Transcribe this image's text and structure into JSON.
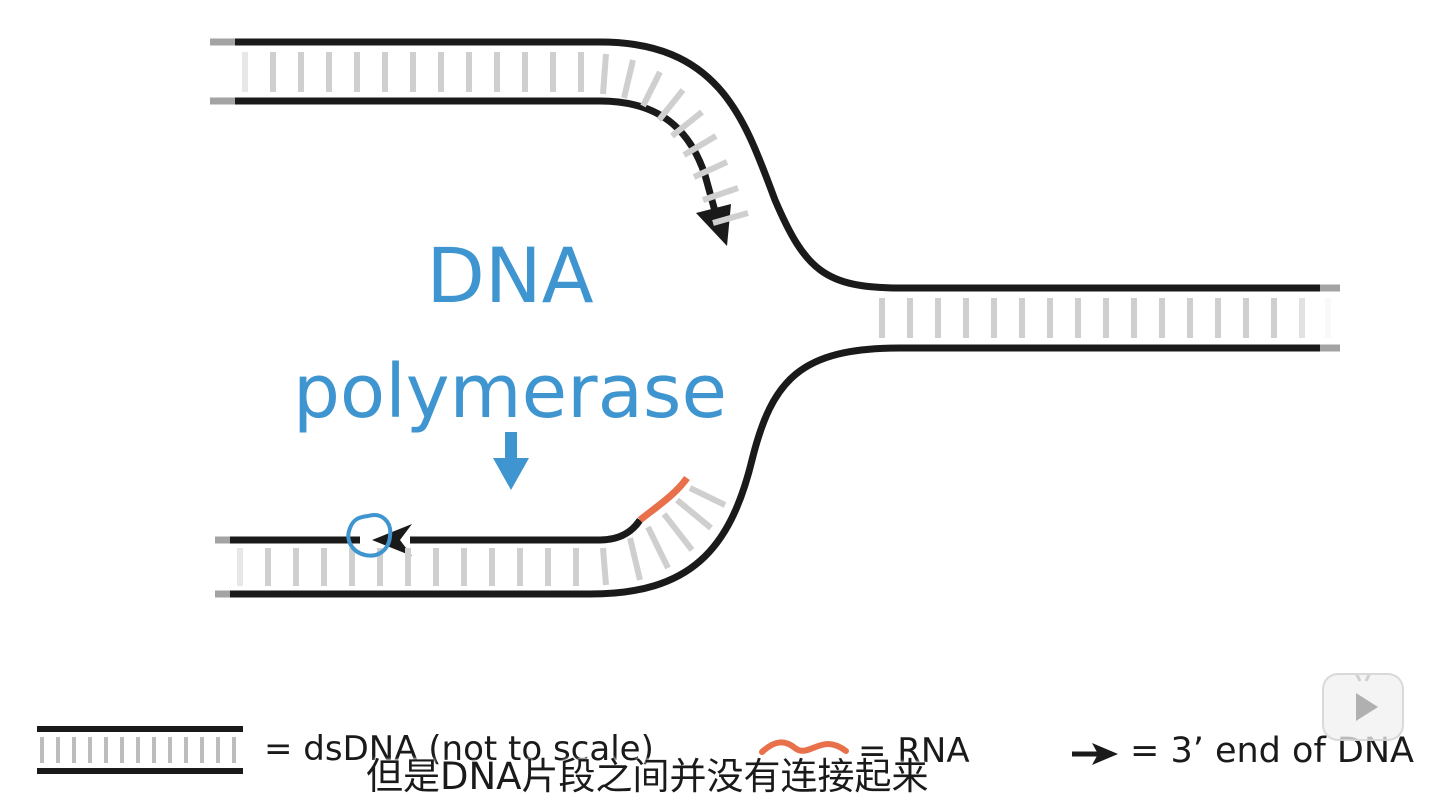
{
  "enzyme": {
    "line1": "DNA",
    "line2": "polymerase"
  },
  "legend": {
    "dsdna": "= dsDNA (not to scale)",
    "rna": "= RNA",
    "three_prime_end": "= 3’ end of DNA"
  },
  "subtitle": "但是DNA片段之间并没有连接起来",
  "colors": {
    "strand": "#1a1a1a",
    "base_pair": "#cfcfcf",
    "rna": "#e8704a",
    "polymerase": "#3f95cf"
  },
  "icons": {
    "play": "play-icon",
    "arrow": "arrow-right-icon"
  }
}
